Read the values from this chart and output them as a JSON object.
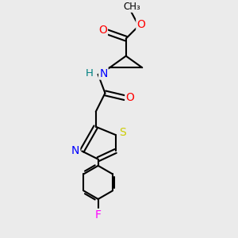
{
  "bg_color": "#ebebeb",
  "atom_colors": {
    "O": "#ff0000",
    "N": "#0000ff",
    "S": "#cccc00",
    "F": "#ff00ff",
    "H": "#008080",
    "C": "#000000"
  },
  "bond_color": "#000000",
  "bond_width": 1.5,
  "font_size_atom": 9,
  "figsize": [
    3.0,
    3.0
  ],
  "dpi": 100
}
